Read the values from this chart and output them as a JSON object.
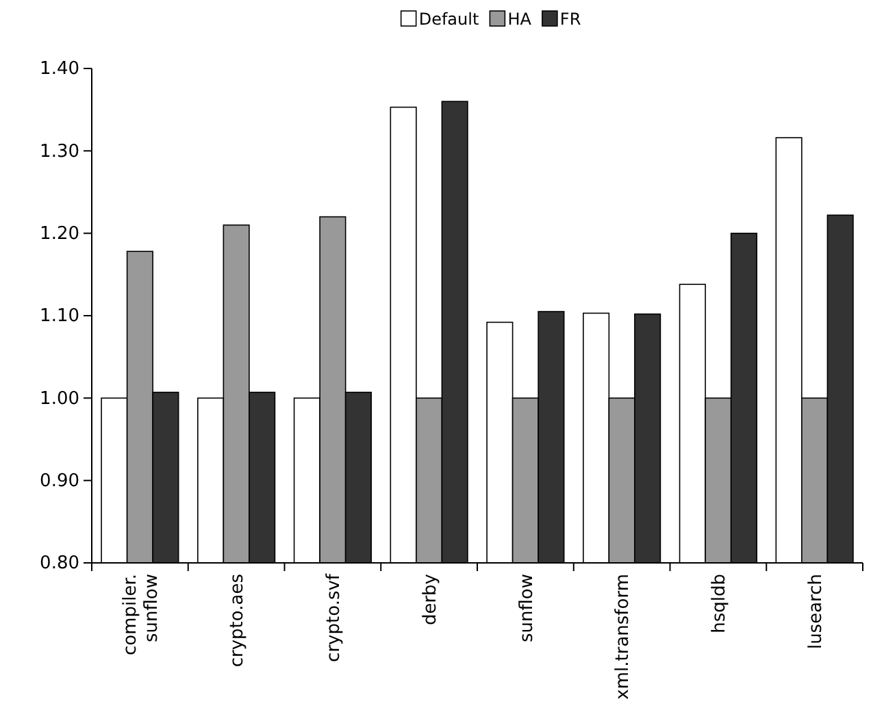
{
  "chart_data": {
    "type": "bar",
    "categories": [
      "compiler. sunflow",
      "crypto.aes",
      "crypto.svf",
      "derby",
      "sunflow",
      "xml.transform",
      "hsqldb",
      "lusearch"
    ],
    "series": [
      {
        "name": "Default",
        "color": "#ffffff",
        "values": [
          1.0,
          1.0,
          1.0,
          1.353,
          1.092,
          1.103,
          1.138,
          1.316
        ]
      },
      {
        "name": "HA",
        "color": "#999999",
        "values": [
          1.178,
          1.21,
          1.22,
          1.0,
          1.0,
          1.0,
          1.0,
          1.0
        ]
      },
      {
        "name": "FR",
        "color": "#333333",
        "values": [
          1.007,
          1.007,
          1.007,
          1.36,
          1.105,
          1.102,
          1.2,
          1.222
        ]
      }
    ],
    "ylim": [
      0.8,
      1.4
    ],
    "yticks": [
      {
        "value": 0.8,
        "label": "0.80"
      },
      {
        "value": 0.9,
        "label": "0.90"
      },
      {
        "value": 1.0,
        "label": "1.00"
      },
      {
        "value": 1.1,
        "label": "1.10"
      },
      {
        "value": 1.2,
        "label": "1.20"
      },
      {
        "value": 1.3,
        "label": "1.30"
      },
      {
        "value": 1.4,
        "label": "1.40"
      }
    ],
    "grid": false,
    "legend": "top"
  }
}
